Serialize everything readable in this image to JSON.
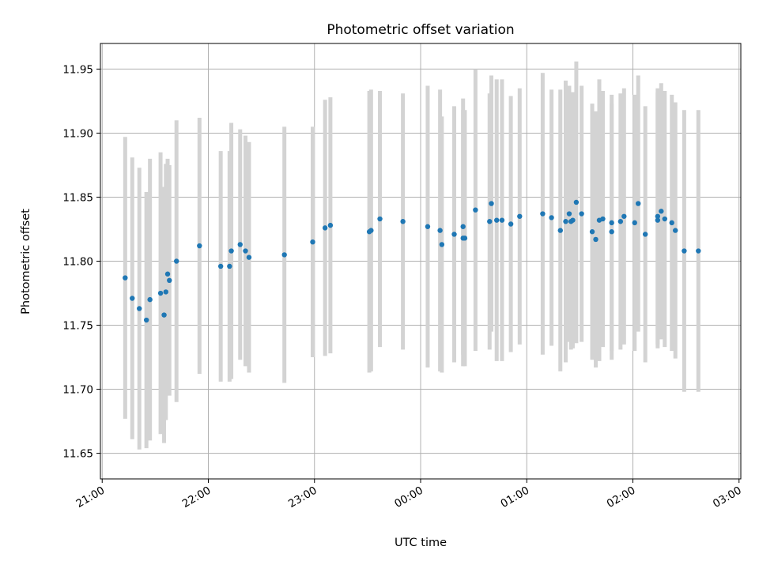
{
  "chart_data": {
    "type": "scatter",
    "title": "Photometric offset variation",
    "xlabel": "UTC time",
    "ylabel": "Photometric offset",
    "grid": true,
    "colors": {
      "points": "#1f77b4",
      "errorbars": "#d3d3d3",
      "grid": "#b0b0b0"
    },
    "xlim": [
      "21:00",
      "03:00"
    ],
    "ylim": [
      11.63,
      11.97
    ],
    "xticks": [
      "21:00",
      "22:00",
      "23:00",
      "00:00",
      "01:00",
      "02:00",
      "03:00"
    ],
    "yticks": [
      "11.65",
      "11.70",
      "11.75",
      "11.80",
      "11.85",
      "11.90",
      "11.95"
    ],
    "series": [
      {
        "x": [
          "21:13",
          "21:17",
          "21:21",
          "21:25",
          "21:27",
          "21:33",
          "21:35",
          "21:36",
          "21:37",
          "21:38",
          "21:42",
          "21:55",
          "22:07",
          "22:12",
          "22:13",
          "22:18",
          "22:21",
          "22:23",
          "22:43",
          "22:59",
          "23:06",
          "23:09",
          "23:31",
          "23:32",
          "23:37",
          "23:50",
          "00:04",
          "00:11",
          "00:12",
          "00:19",
          "00:24",
          "00:24",
          "00:25",
          "00:31",
          "00:39",
          "00:40",
          "00:43",
          "00:46",
          "00:51",
          "00:56",
          "01:09",
          "01:14",
          "01:19",
          "01:22",
          "01:24",
          "01:25",
          "01:26",
          "01:28",
          "01:31",
          "01:37",
          "01:39",
          "01:41",
          "01:43",
          "01:48",
          "01:48",
          "01:53",
          "01:55",
          "02:01",
          "02:03",
          "02:07",
          "02:14",
          "02:14",
          "02:16",
          "02:18",
          "02:22",
          "02:24",
          "02:29",
          "02:37"
        ],
        "y": [
          11.787,
          11.771,
          11.763,
          11.754,
          11.77,
          11.775,
          11.758,
          11.776,
          11.79,
          11.785,
          11.8,
          11.812,
          11.796,
          11.796,
          11.808,
          11.813,
          11.808,
          11.803,
          11.805,
          11.815,
          11.826,
          11.828,
          11.823,
          11.824,
          11.833,
          11.831,
          11.827,
          11.824,
          11.813,
          11.821,
          11.827,
          11.818,
          11.818,
          11.84,
          11.831,
          11.845,
          11.832,
          11.832,
          11.829,
          11.835,
          11.837,
          11.834,
          11.824,
          11.831,
          11.837,
          11.831,
          11.832,
          11.846,
          11.837,
          11.823,
          11.817,
          11.832,
          11.833,
          11.83,
          11.823,
          11.831,
          11.835,
          11.83,
          11.845,
          11.821,
          11.832,
          11.835,
          11.839,
          11.833,
          11.83,
          11.824,
          11.808,
          11.808
        ],
        "yerr": [
          0.11,
          0.11,
          0.11,
          0.1,
          0.11,
          0.11,
          0.1,
          0.1,
          0.09,
          0.09,
          0.11,
          0.1,
          0.09,
          0.09,
          0.1,
          0.09,
          0.09,
          0.09,
          0.1,
          0.09,
          0.1,
          0.1,
          0.11,
          0.11,
          0.1,
          0.1,
          0.11,
          0.11,
          0.1,
          0.1,
          0.1,
          0.1,
          0.1,
          0.11,
          0.1,
          0.1,
          0.11,
          0.11,
          0.1,
          0.1,
          0.11,
          0.1,
          0.11,
          0.11,
          0.1,
          0.1,
          0.1,
          0.11,
          0.1,
          0.1,
          0.1,
          0.11,
          0.1,
          0.1,
          0.1,
          0.1,
          0.1,
          0.1,
          0.1,
          0.1,
          0.1,
          0.1,
          0.1,
          0.1,
          0.1,
          0.1,
          0.11,
          0.11
        ]
      }
    ]
  }
}
